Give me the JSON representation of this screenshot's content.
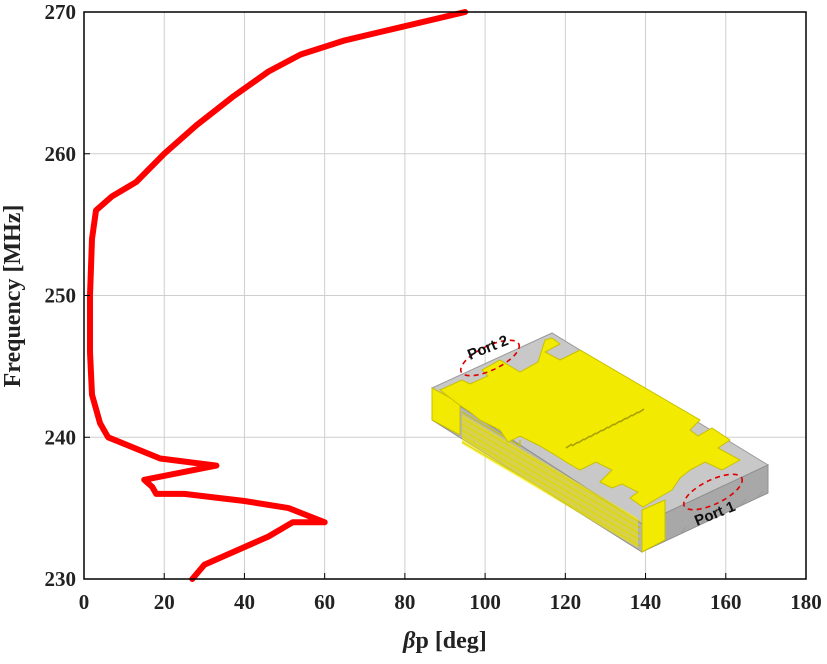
{
  "chart_data": {
    "type": "line",
    "title": "",
    "xlabel_prefix": "β",
    "xlabel_rest": "p [deg]",
    "ylabel": "Frequency [MHz]",
    "xlim": [
      0,
      180
    ],
    "ylim": [
      230,
      270
    ],
    "xticks": [
      0,
      20,
      40,
      60,
      80,
      100,
      120,
      140,
      160,
      180
    ],
    "yticks": [
      230,
      240,
      250,
      260,
      270
    ],
    "grid": true,
    "series": [
      {
        "color": "#ff0000",
        "x": [
          27,
          30,
          38,
          46,
          52,
          60,
          51,
          40,
          25,
          18,
          17,
          15,
          24,
          33,
          19,
          6,
          4,
          2,
          1.5,
          1.5,
          2,
          3,
          7,
          13,
          20,
          28,
          37,
          46,
          54,
          65,
          80,
          95
        ],
        "y": [
          230,
          231,
          232,
          233,
          234,
          234,
          235,
          235.5,
          236,
          236,
          236.5,
          237,
          237.5,
          238,
          238.5,
          240,
          241,
          243,
          246,
          250,
          254,
          256,
          257,
          258,
          260,
          262,
          264,
          265.8,
          267,
          268,
          269,
          270
        ]
      }
    ]
  },
  "inset": {
    "port1_label": "Port 1",
    "port2_label": "Port 2"
  }
}
